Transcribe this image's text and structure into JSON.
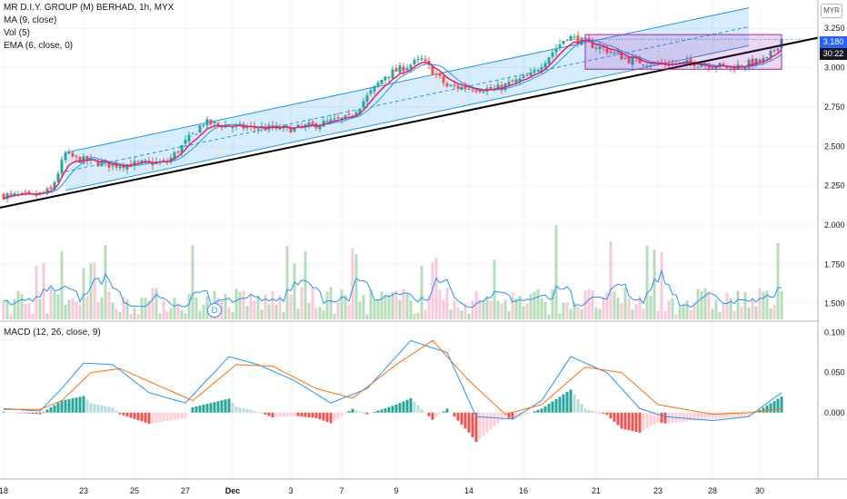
{
  "header": {
    "symbol_line": "MR D.I.Y. GROUP (M) BERHAD, 1h, MYX",
    "ma_label": "MA (9, close)",
    "vol_label": "Vol (5)",
    "ema_label": "EMA (6, close, 0)",
    "macd_label": "MACD (12, 26, close, 9)",
    "currency": "MYR",
    "dividend_marker": "D"
  },
  "price_tags": {
    "last_price": "3.180",
    "countdown": "30:22",
    "last_price_color": "#2962ff",
    "countdown_color": "#131722"
  },
  "colors": {
    "up": "#26a69a",
    "down": "#ef5350",
    "ma": "#2196f3",
    "ema": "#e91e63",
    "trend": "#000000",
    "channel": "#2196f3",
    "macd": "#2196f3",
    "signal": "#ff6d00",
    "box": "#9c27b0"
  },
  "chart_data": [
    {
      "type": "candlestick",
      "title": "MR D.I.Y. GROUP (M) BERHAD, 1h, MYX",
      "ylim": [
        1.4,
        3.43
      ],
      "y_ticks": [
        "3.250",
        "3.000",
        "2.750",
        "2.500",
        "2.250",
        "2.000",
        "1.750",
        "1.500"
      ],
      "x_ticks": [
        "18",
        "23",
        "25",
        "27",
        "Dec",
        "3",
        "7",
        "9",
        "14",
        "16",
        "21",
        "23",
        "28",
        "30"
      ],
      "close_anchors": [
        [
          0,
          2.19
        ],
        [
          8,
          2.18
        ],
        [
          13,
          2.22
        ],
        [
          17,
          2.45
        ],
        [
          20,
          2.42
        ],
        [
          30,
          2.38
        ],
        [
          45,
          2.4
        ],
        [
          55,
          2.65
        ],
        [
          65,
          2.62
        ],
        [
          80,
          2.61
        ],
        [
          95,
          2.68
        ],
        [
          105,
          2.95
        ],
        [
          115,
          3.05
        ],
        [
          122,
          2.88
        ],
        [
          135,
          2.86
        ],
        [
          145,
          2.95
        ],
        [
          155,
          3.2
        ],
        [
          165,
          3.12
        ],
        [
          172,
          3.05
        ],
        [
          180,
          3.02
        ],
        [
          190,
          3.03
        ],
        [
          200,
          3.0
        ],
        [
          210,
          3.05
        ],
        [
          214,
          3.18
        ]
      ],
      "last_close": 3.18
    },
    {
      "type": "bar",
      "title": "Vol (5)",
      "note": "volume histogram with 5-period average line, no axis values shown"
    },
    {
      "type": "line",
      "title": "MACD (12, 26, close, 9)",
      "ylim": [
        -0.083,
        0.112
      ],
      "y_ticks": [
        "0.100",
        "0.050",
        "0.000"
      ],
      "series": [
        {
          "name": "MACD",
          "anchors": [
            [
              0,
              0.005
            ],
            [
              10,
              0.002
            ],
            [
              16,
              0.03
            ],
            [
              22,
              0.062
            ],
            [
              30,
              0.06
            ],
            [
              40,
              0.025
            ],
            [
              50,
              0.012
            ],
            [
              62,
              0.07
            ],
            [
              70,
              0.06
            ],
            [
              80,
              0.04
            ],
            [
              90,
              0.012
            ],
            [
              100,
              0.03
            ],
            [
              112,
              0.09
            ],
            [
              122,
              0.075
            ],
            [
              130,
              -0.005
            ],
            [
              140,
              -0.008
            ],
            [
              148,
              0.015
            ],
            [
              156,
              0.07
            ],
            [
              166,
              0.05
            ],
            [
              175,
              0.005
            ],
            [
              182,
              -0.005
            ],
            [
              195,
              -0.01
            ],
            [
              205,
              -0.005
            ],
            [
              214,
              0.025
            ]
          ]
        },
        {
          "name": "Signal",
          "anchors": [
            [
              0,
              0.004
            ],
            [
              10,
              0.004
            ],
            [
              16,
              0.015
            ],
            [
              24,
              0.05
            ],
            [
              32,
              0.055
            ],
            [
              42,
              0.035
            ],
            [
              52,
              0.015
            ],
            [
              64,
              0.06
            ],
            [
              74,
              0.058
            ],
            [
              86,
              0.03
            ],
            [
              96,
              0.018
            ],
            [
              108,
              0.06
            ],
            [
              118,
              0.09
            ],
            [
              128,
              0.04
            ],
            [
              138,
              -0.002
            ],
            [
              148,
              0.01
            ],
            [
              160,
              0.057
            ],
            [
              170,
              0.05
            ],
            [
              180,
              0.01
            ],
            [
              195,
              -0.002
            ],
            [
              205,
              0.0
            ],
            [
              214,
              0.005
            ]
          ]
        }
      ]
    }
  ]
}
